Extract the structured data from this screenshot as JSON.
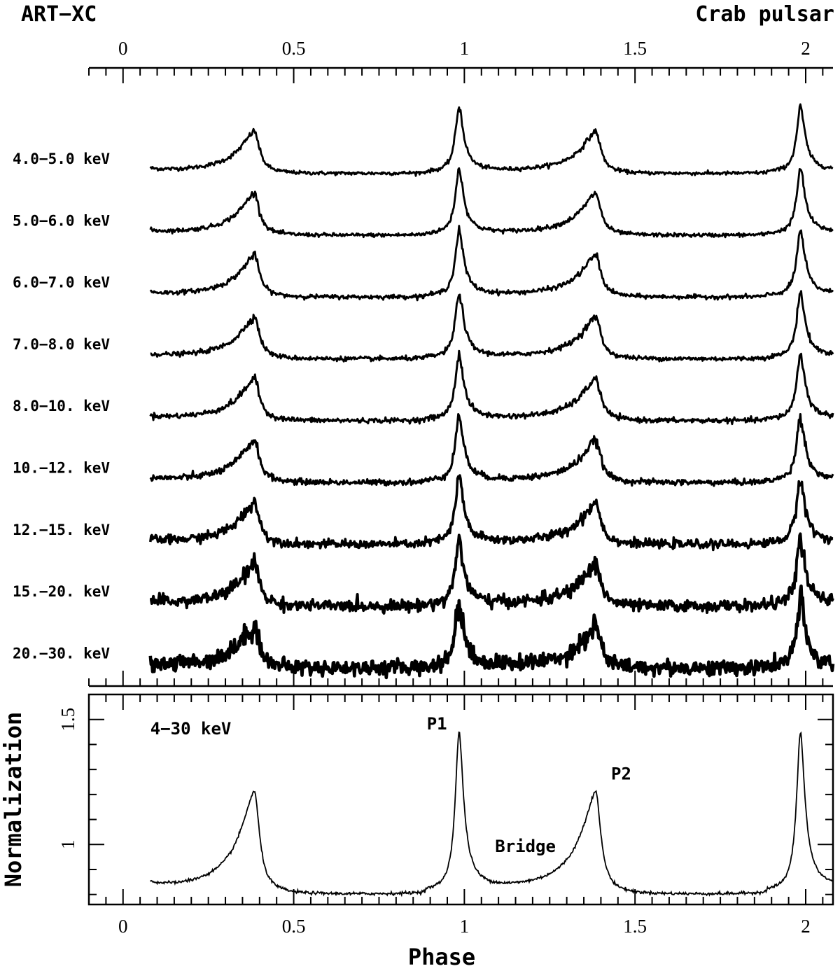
{
  "header": {
    "left": "ART−XC",
    "right": "Crab pulsar"
  },
  "chart_data": [
    {
      "type": "line",
      "panel": "top",
      "description_axis": "phase",
      "xlim": [
        -0.1,
        2.08
      ],
      "x_ticks": [
        0,
        0.5,
        1,
        1.5,
        2
      ],
      "x_tick_labels": [
        "0",
        "0.5",
        "1",
        "1.5",
        "2"
      ],
      "phase_range": [
        0.08,
        2.08
      ],
      "peaks": {
        "P1": [
          0.985,
          1.985
        ],
        "P2": [
          0.385,
          1.385
        ]
      },
      "series": [
        {
          "name": "4.0−5.0 keV",
          "noise": 0.015
        },
        {
          "name": "5.0−6.0 keV",
          "noise": 0.016
        },
        {
          "name": "6.0−7.0 keV",
          "noise": 0.017
        },
        {
          "name": "7.0−8.0 keV",
          "noise": 0.018
        },
        {
          "name": "8.0−10. keV",
          "noise": 0.02
        },
        {
          "name": "10.−12. keV",
          "noise": 0.024
        },
        {
          "name": "12.−15. keV",
          "noise": 0.034
        },
        {
          "name": "15.−20. keV",
          "noise": 0.045
        },
        {
          "name": "20.−30. keV",
          "noise": 0.06
        }
      ]
    },
    {
      "type": "line",
      "panel": "bottom",
      "xlabel": "Phase",
      "ylabel": "Normalization",
      "xlim": [
        -0.1,
        2.08
      ],
      "ylim": [
        0.76,
        1.6
      ],
      "x_ticks": [
        0,
        0.5,
        1,
        1.5,
        2
      ],
      "x_tick_labels": [
        "0",
        "0.5",
        "1",
        "1.5",
        "2"
      ],
      "y_ticks": [
        1,
        1.5
      ],
      "y_tick_labels": [
        "1",
        "1.5"
      ],
      "phase_range": [
        0.08,
        2.08
      ],
      "baseline": 0.8,
      "p1_peak": 1.45,
      "p2_peak": 1.22,
      "series": [
        {
          "name": "4−30 keV"
        }
      ],
      "annotations": [
        {
          "text": "4−30 keV",
          "x": 0.08,
          "y": 1.44
        },
        {
          "text": "P1",
          "x": 0.89,
          "y": 1.46
        },
        {
          "text": "P2",
          "x": 1.43,
          "y": 1.26
        },
        {
          "text": "Bridge",
          "x": 1.09,
          "y": 0.97
        }
      ]
    }
  ]
}
